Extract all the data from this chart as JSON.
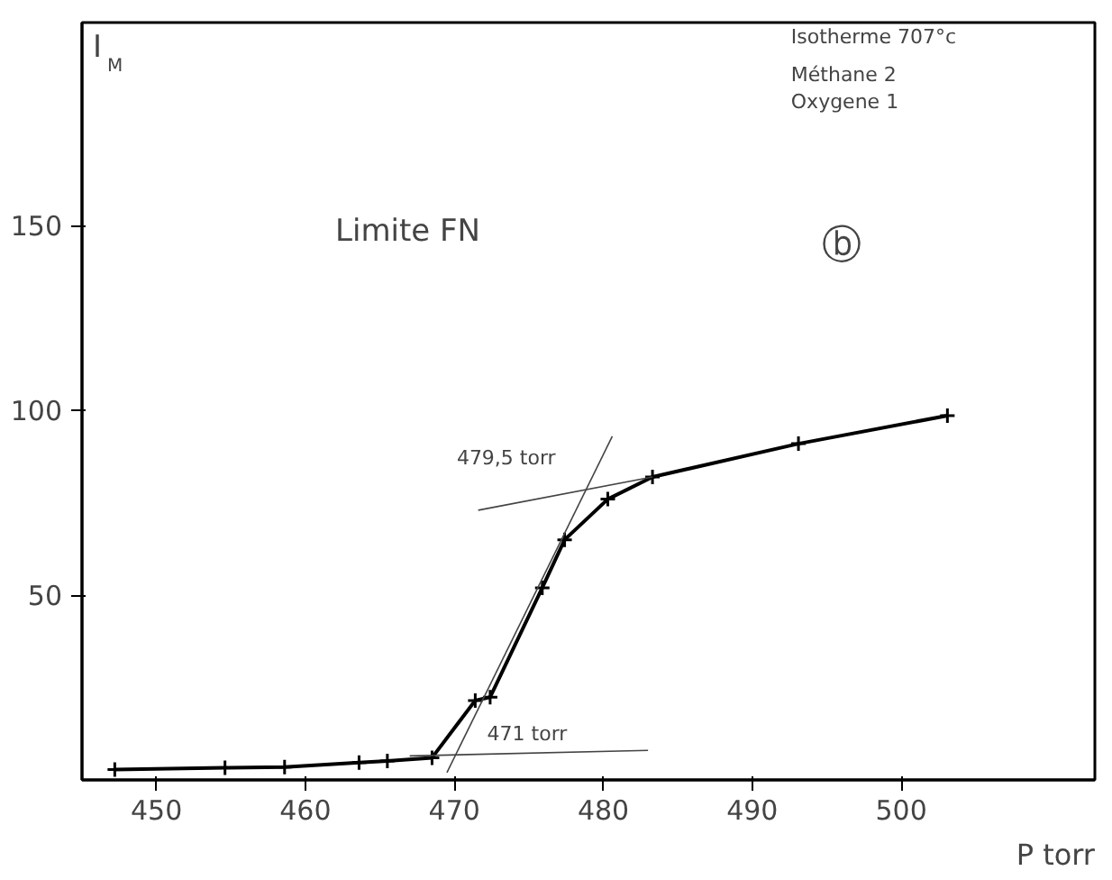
{
  "chart_data": {
    "type": "line",
    "xlabel": "P torr",
    "ylabel": "I$_{M}$",
    "xlim": [
      445,
      513
    ],
    "ylim": [
      0,
      205
    ],
    "xticks": [
      450,
      460,
      470,
      480,
      490,
      500
    ],
    "yticks": [
      50,
      100,
      150
    ],
    "grid": false,
    "marker": "cross",
    "line_style": "solid",
    "series": [
      {
        "color": "#000000",
        "x": [
          447.2,
          454.6,
          458.6,
          463.6,
          465.5,
          468.5,
          471.4,
          472.4,
          475.9,
          477.4,
          480.3,
          483.3,
          493.1,
          503.1
        ],
        "values": [
          2.8,
          3.3,
          3.5,
          4.7,
          5.1,
          6,
          21.5,
          22.4,
          52,
          65,
          76,
          82,
          91,
          98.6
        ]
      },
      {
        "color": "#444444",
        "marker": "none",
        "x": [
          469.5,
          480.6
        ],
        "values": [
          2,
          93
        ]
      },
      {
        "color": "#444444",
        "marker": "none",
        "x": [
          467,
          483
        ],
        "values": [
          6.5,
          8
        ]
      },
      {
        "color": "#444444",
        "marker": "none",
        "x": [
          471.6,
          483.3
        ],
        "values": [
          73,
          82
        ]
      }
    ],
    "annotations": [
      "Isotherme   707°c",
      "Méthane   2",
      "Oxygene   1",
      "Limite  FN",
      "ⓑ",
      "479,5 torr",
      "471 torr"
    ]
  }
}
